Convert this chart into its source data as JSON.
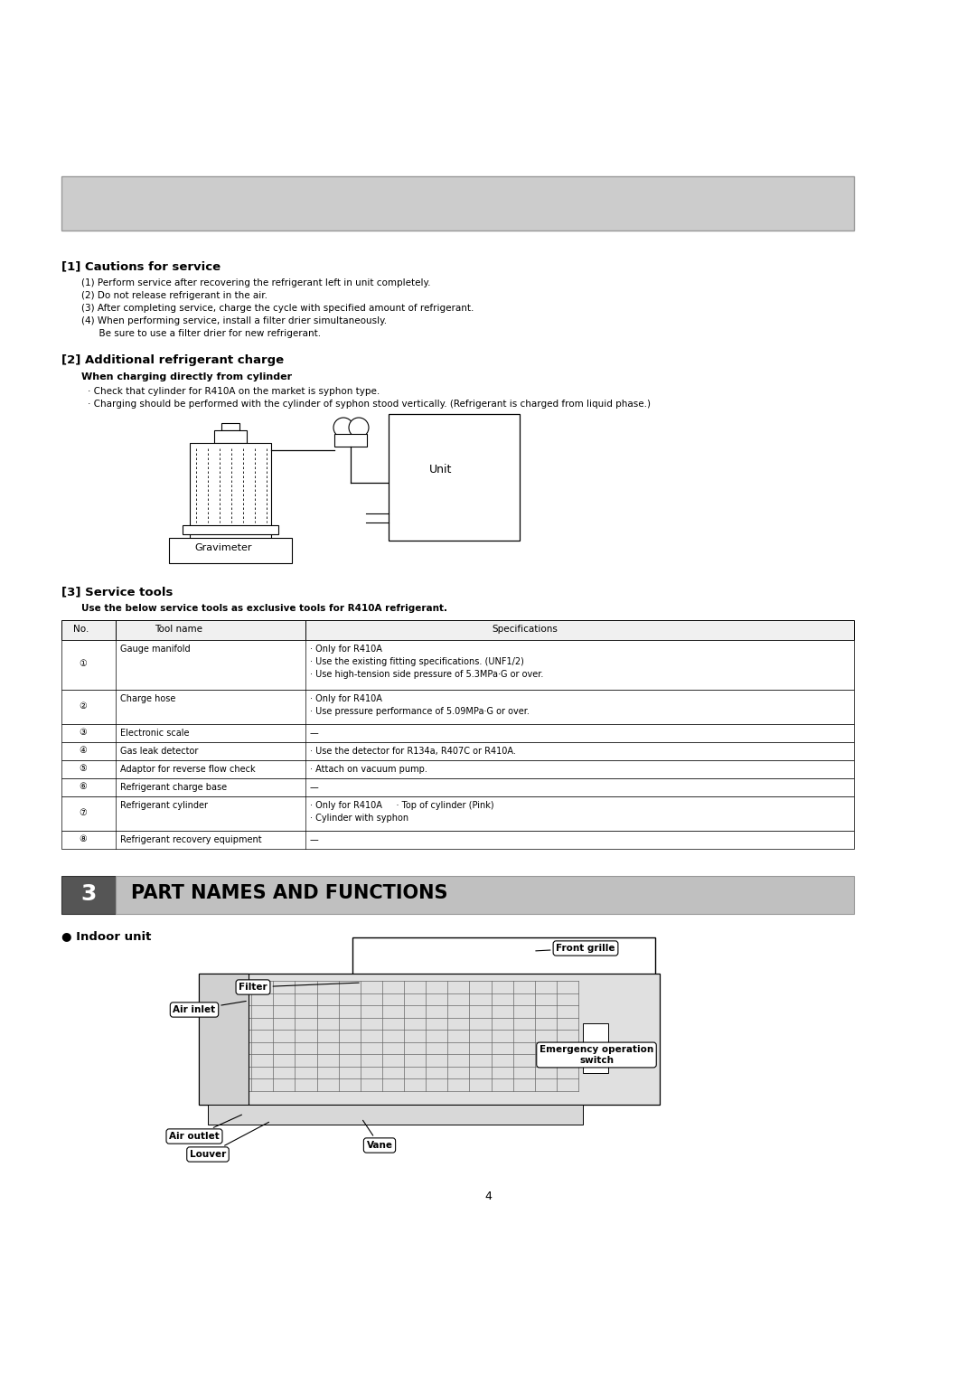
{
  "bg_color": "#ffffff",
  "page_number": "4",
  "gray_box_color": "#cccccc",
  "cautions_title": "[1] Cautions for service",
  "cautions_items": [
    "(1) Perform service after recovering the refrigerant left in unit completely.",
    "(2) Do not release refrigerant in the air.",
    "(3) After completing service, charge the cycle with specified amount of refrigerant.",
    "(4) When performing service, install a filter drier simultaneously.",
    "      Be sure to use a filter drier for new refrigerant."
  ],
  "add_charge_title": "[2] Additional refrigerant charge",
  "add_charge_sub": "When charging directly from cylinder",
  "add_charge_bullets": [
    "· Check that cylinder for R410A on the market is syphon type.",
    "· Charging should be performed with the cylinder of syphon stood vertically. (Refrigerant is charged from liquid phase.)"
  ],
  "diagram_gravimeter_label": "Gravimeter",
  "diagram_unit_label": "Unit",
  "service_tools_title": "[3] Service tools",
  "service_tools_sub": "Use the below service tools as exclusive tools for R410A refrigerant.",
  "table_headers": [
    "No.",
    "Tool name",
    "Specifications"
  ],
  "table_rows": [
    [
      "①",
      "Gauge manifold",
      "· Only for R410A\n· Use the existing fitting specifications. (UNF1/2)\n· Use high-tension side pressure of 5.3MPa·G or over."
    ],
    [
      "②",
      "Charge hose",
      "· Only for R410A\n· Use pressure performance of 5.09MPa·G or over."
    ],
    [
      "③",
      "Electronic scale",
      "—"
    ],
    [
      "④",
      "Gas leak detector",
      "· Use the detector for R134a, R407C or R410A."
    ],
    [
      "⑤",
      "Adaptor for reverse flow check",
      "· Attach on vacuum pump."
    ],
    [
      "⑥",
      "Refrigerant charge base",
      "—"
    ],
    [
      "⑦",
      "Refrigerant cylinder",
      "· Only for R410A     · Top of cylinder (Pink)\n· Cylinder with syphon"
    ],
    [
      "⑧",
      "Refrigerant recovery equipment",
      "—"
    ]
  ],
  "section3_num": "3",
  "section3_title": "PART NAMES AND FUNCTIONS",
  "indoor_unit_label": "● Indoor unit"
}
